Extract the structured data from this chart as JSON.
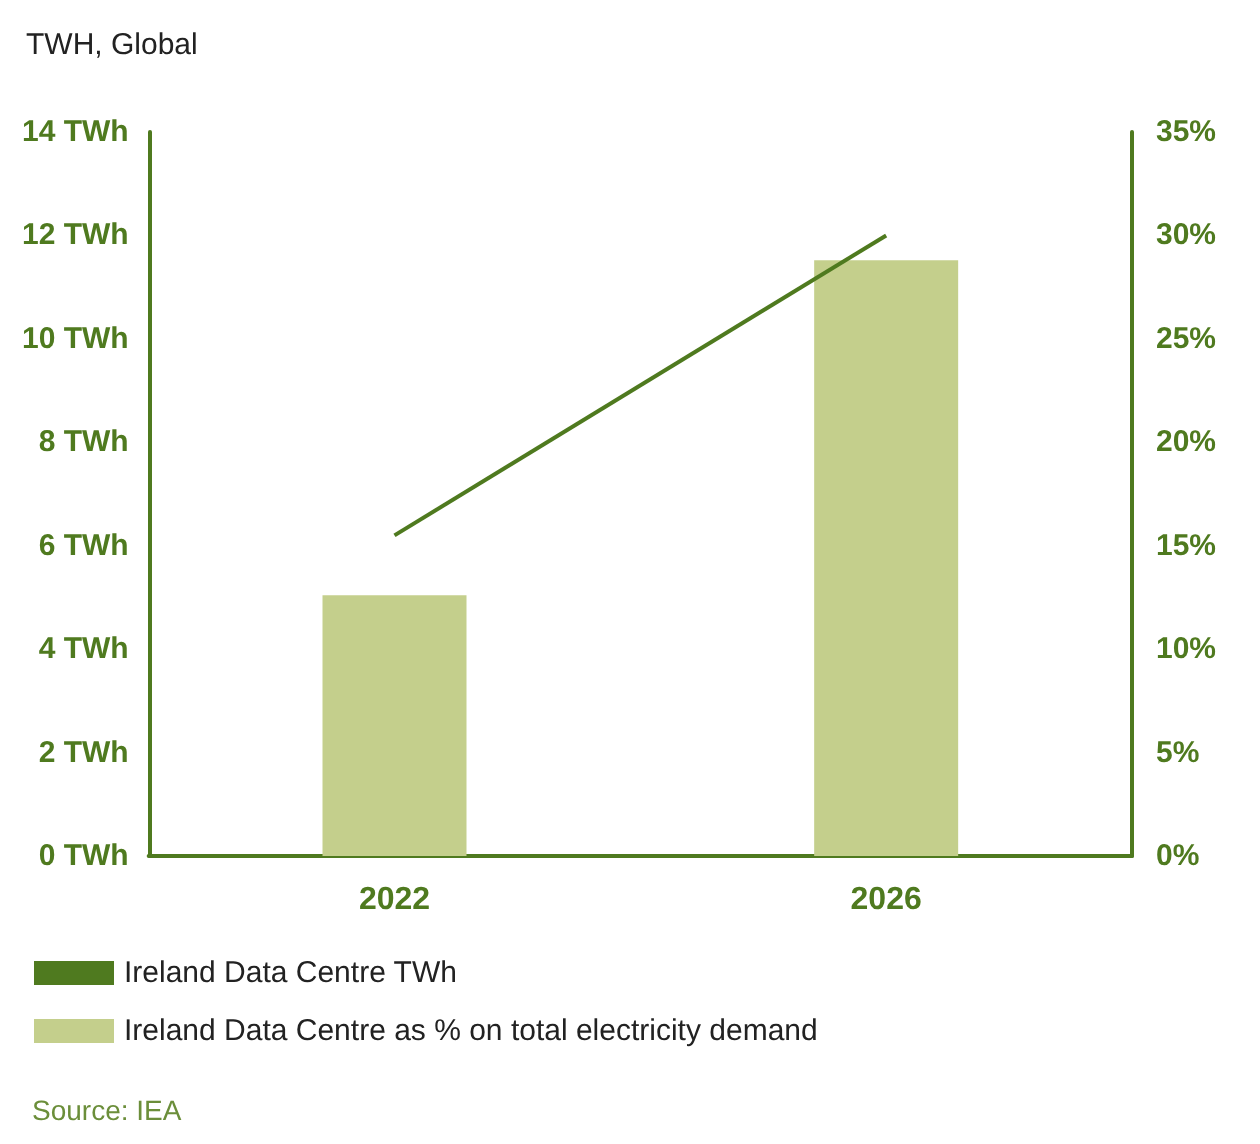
{
  "chart_data": {
    "type": "bar",
    "title": "TWH, Global",
    "categories": [
      "2022",
      "2026"
    ],
    "series": [
      {
        "name": "Ireland Data Centre TWh",
        "type": "line",
        "color": "#4f7a1f",
        "values": [
          6.2,
          12
        ]
      },
      {
        "name": "Ireland Data Centre as % on total electricity demand",
        "axis": "y2",
        "color": "#c4cf8c",
        "values": [
          12.6,
          28.8
        ]
      }
    ],
    "ylim": [
      0,
      14
    ],
    "yticks": [
      {
        "value": 0,
        "label": "0 TWh"
      },
      {
        "value": 2,
        "label": "2 TWh"
      },
      {
        "value": 4,
        "label": "4 TWh"
      },
      {
        "value": 6,
        "label": "6 TWh"
      },
      {
        "value": 8,
        "label": "8 TWh"
      },
      {
        "value": 10,
        "label": "10 TWh"
      },
      {
        "value": 12,
        "label": "12 TWh"
      },
      {
        "value": 14,
        "label": "14 TWh"
      }
    ],
    "y2lim": [
      0,
      35
    ],
    "y2ticks": [
      {
        "value": 0,
        "label": "0%"
      },
      {
        "value": 5,
        "label": "5%"
      },
      {
        "value": 10,
        "label": "10%"
      },
      {
        "value": 15,
        "label": "15%"
      },
      {
        "value": 20,
        "label": "20%"
      },
      {
        "value": 25,
        "label": "25%"
      },
      {
        "value": 30,
        "label": "30%"
      },
      {
        "value": 35,
        "label": "35%"
      }
    ],
    "grid": false,
    "legend": "bottom left",
    "marker": "none",
    "annotations": [
      "Source: IEA"
    ]
  }
}
